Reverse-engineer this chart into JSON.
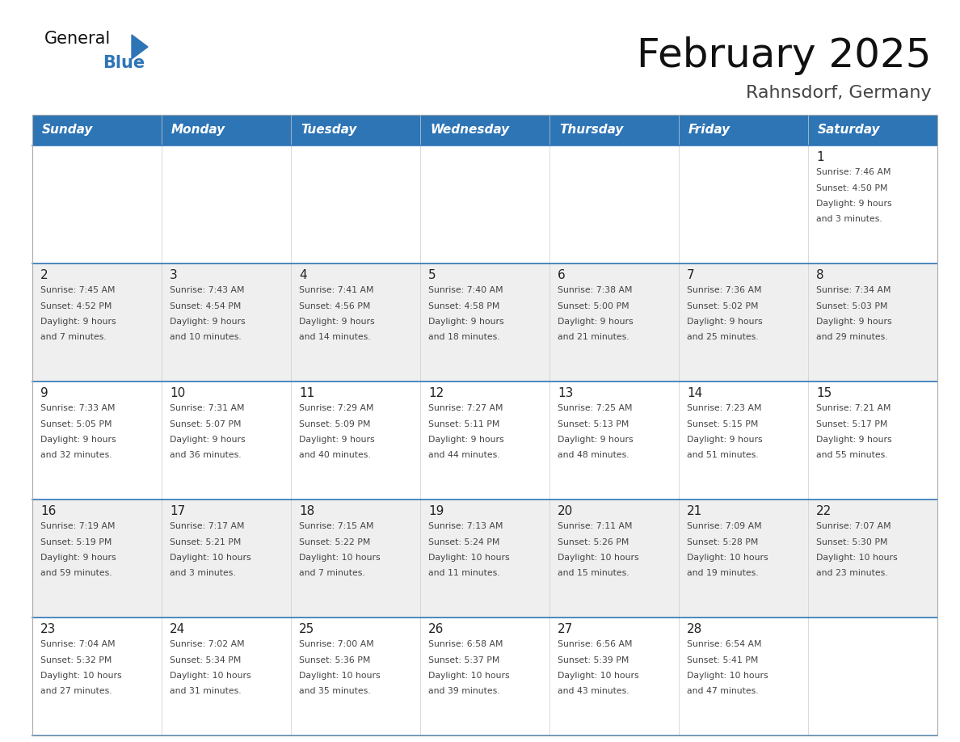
{
  "title": "February 2025",
  "subtitle": "Rahnsdorf, Germany",
  "header_bg": "#2e75b6",
  "header_text_color": "#ffffff",
  "day_names": [
    "Sunday",
    "Monday",
    "Tuesday",
    "Wednesday",
    "Thursday",
    "Friday",
    "Saturday"
  ],
  "row_bg_even": "#ffffff",
  "row_bg_odd": "#efefef",
  "cell_border_color": "#2e75b6",
  "number_color": "#222222",
  "text_color": "#444444",
  "calendar": [
    [
      null,
      null,
      null,
      null,
      null,
      null,
      {
        "day": 1,
        "sunrise": "7:46 AM",
        "sunset": "4:50 PM",
        "daylight": "9 hours\nand 3 minutes."
      }
    ],
    [
      {
        "day": 2,
        "sunrise": "7:45 AM",
        "sunset": "4:52 PM",
        "daylight": "9 hours\nand 7 minutes."
      },
      {
        "day": 3,
        "sunrise": "7:43 AM",
        "sunset": "4:54 PM",
        "daylight": "9 hours\nand 10 minutes."
      },
      {
        "day": 4,
        "sunrise": "7:41 AM",
        "sunset": "4:56 PM",
        "daylight": "9 hours\nand 14 minutes."
      },
      {
        "day": 5,
        "sunrise": "7:40 AM",
        "sunset": "4:58 PM",
        "daylight": "9 hours\nand 18 minutes."
      },
      {
        "day": 6,
        "sunrise": "7:38 AM",
        "sunset": "5:00 PM",
        "daylight": "9 hours\nand 21 minutes."
      },
      {
        "day": 7,
        "sunrise": "7:36 AM",
        "sunset": "5:02 PM",
        "daylight": "9 hours\nand 25 minutes."
      },
      {
        "day": 8,
        "sunrise": "7:34 AM",
        "sunset": "5:03 PM",
        "daylight": "9 hours\nand 29 minutes."
      }
    ],
    [
      {
        "day": 9,
        "sunrise": "7:33 AM",
        "sunset": "5:05 PM",
        "daylight": "9 hours\nand 32 minutes."
      },
      {
        "day": 10,
        "sunrise": "7:31 AM",
        "sunset": "5:07 PM",
        "daylight": "9 hours\nand 36 minutes."
      },
      {
        "day": 11,
        "sunrise": "7:29 AM",
        "sunset": "5:09 PM",
        "daylight": "9 hours\nand 40 minutes."
      },
      {
        "day": 12,
        "sunrise": "7:27 AM",
        "sunset": "5:11 PM",
        "daylight": "9 hours\nand 44 minutes."
      },
      {
        "day": 13,
        "sunrise": "7:25 AM",
        "sunset": "5:13 PM",
        "daylight": "9 hours\nand 48 minutes."
      },
      {
        "day": 14,
        "sunrise": "7:23 AM",
        "sunset": "5:15 PM",
        "daylight": "9 hours\nand 51 minutes."
      },
      {
        "day": 15,
        "sunrise": "7:21 AM",
        "sunset": "5:17 PM",
        "daylight": "9 hours\nand 55 minutes."
      }
    ],
    [
      {
        "day": 16,
        "sunrise": "7:19 AM",
        "sunset": "5:19 PM",
        "daylight": "9 hours\nand 59 minutes."
      },
      {
        "day": 17,
        "sunrise": "7:17 AM",
        "sunset": "5:21 PM",
        "daylight": "10 hours\nand 3 minutes."
      },
      {
        "day": 18,
        "sunrise": "7:15 AM",
        "sunset": "5:22 PM",
        "daylight": "10 hours\nand 7 minutes."
      },
      {
        "day": 19,
        "sunrise": "7:13 AM",
        "sunset": "5:24 PM",
        "daylight": "10 hours\nand 11 minutes."
      },
      {
        "day": 20,
        "sunrise": "7:11 AM",
        "sunset": "5:26 PM",
        "daylight": "10 hours\nand 15 minutes."
      },
      {
        "day": 21,
        "sunrise": "7:09 AM",
        "sunset": "5:28 PM",
        "daylight": "10 hours\nand 19 minutes."
      },
      {
        "day": 22,
        "sunrise": "7:07 AM",
        "sunset": "5:30 PM",
        "daylight": "10 hours\nand 23 minutes."
      }
    ],
    [
      {
        "day": 23,
        "sunrise": "7:04 AM",
        "sunset": "5:32 PM",
        "daylight": "10 hours\nand 27 minutes."
      },
      {
        "day": 24,
        "sunrise": "7:02 AM",
        "sunset": "5:34 PM",
        "daylight": "10 hours\nand 31 minutes."
      },
      {
        "day": 25,
        "sunrise": "7:00 AM",
        "sunset": "5:36 PM",
        "daylight": "10 hours\nand 35 minutes."
      },
      {
        "day": 26,
        "sunrise": "6:58 AM",
        "sunset": "5:37 PM",
        "daylight": "10 hours\nand 39 minutes."
      },
      {
        "day": 27,
        "sunrise": "6:56 AM",
        "sunset": "5:39 PM",
        "daylight": "10 hours\nand 43 minutes."
      },
      {
        "day": 28,
        "sunrise": "6:54 AM",
        "sunset": "5:41 PM",
        "daylight": "10 hours\nand 47 minutes."
      },
      null
    ]
  ],
  "logo_general_color": "#111111",
  "logo_blue_color": "#2e75b6",
  "logo_triangle_color": "#2e75b6",
  "fig_width": 11.88,
  "fig_height": 9.18,
  "dpi": 100
}
